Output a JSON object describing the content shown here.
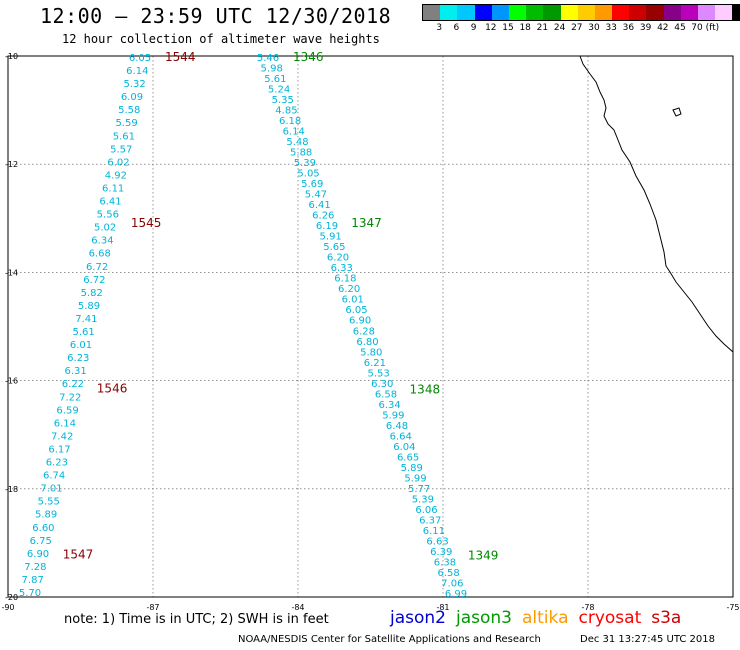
{
  "header": {
    "title": "12:00 — 23:59 UTC 12/30/2018",
    "subtitle": "12 hour collection of altimeter wave heights"
  },
  "legend": {
    "colors": [
      "#808080",
      "#00eeee",
      "#00c8ff",
      "#0000ff",
      "#0096ff",
      "#00ff00",
      "#00bb00",
      "#009900",
      "#ffff00",
      "#ffcc00",
      "#ff9900",
      "#ff0000",
      "#cc0000",
      "#990000",
      "#880088",
      "#bb00bb",
      "#dd88ff",
      "#ffccff",
      "#000000"
    ],
    "labels": [
      "3",
      "6",
      "9",
      "12",
      "15",
      "18",
      "21",
      "24",
      "27",
      "30",
      "33",
      "36",
      "39",
      "42",
      "45",
      "70 (ft)"
    ]
  },
  "map": {
    "lon_range": [
      -90,
      -75
    ],
    "lat_range": [
      -20,
      -10
    ],
    "x_ticks": [
      "-90",
      "-87",
      "-84",
      "-81",
      "-78",
      "-75"
    ],
    "y_ticks": [
      "-10",
      "-12",
      "-14",
      "-16",
      "-18",
      "-20"
    ],
    "value_color": "#00b4d8",
    "track_a": {
      "values": [
        "6.05",
        "6.14",
        "5.32",
        "6.09",
        "5.58",
        "5.59",
        "5.61",
        "5.57",
        "6.02",
        "4.92",
        "6.11",
        "6.41",
        "5.56",
        "5.02",
        "6.34",
        "6.68",
        "6.72",
        "6.72",
        "5.82",
        "5.89",
        "7.41",
        "5.61",
        "6.01",
        "6.23",
        "6.31",
        "6.22",
        "7.22",
        "6.59",
        "6.14",
        "7.42",
        "6.17",
        "6.23",
        "6.74",
        "7.01",
        "5.55",
        "5.89",
        "6.60",
        "6.75",
        "6.90",
        "7.28",
        "7.87",
        "5.70"
      ],
      "times": [
        {
          "label": "1544",
          "color": "#880000"
        },
        {
          "label": "1545",
          "color": "#880000"
        },
        {
          "label": "1546",
          "color": "#880000"
        },
        {
          "label": "1547",
          "color": "#880000"
        }
      ]
    },
    "track_b": {
      "values": [
        "5.46",
        "5.98",
        "5.61",
        "5.24",
        "5.35",
        "4.85",
        "6.18",
        "6.14",
        "5.48",
        "5.88",
        "5.39",
        "5.05",
        "5.69",
        "5.47",
        "6.41",
        "6.26",
        "6.19",
        "5.91",
        "5.65",
        "6.20",
        "6.33",
        "6.18",
        "6.20",
        "6.01",
        "6.05",
        "6.90",
        "6.28",
        "6.80",
        "5.80",
        "6.21",
        "5.53",
        "6.30",
        "6.58",
        "6.34",
        "5.99",
        "6.48",
        "6.64",
        "6.04",
        "6.65",
        "5.89",
        "5.99",
        "5.77",
        "5.39",
        "6.06",
        "6.37",
        "6.11",
        "6.63",
        "6.39",
        "6.38",
        "6.58",
        "7.06",
        "6.99"
      ],
      "times": [
        {
          "label": "1346",
          "color": "#008800"
        },
        {
          "label": "1347",
          "color": "#008800"
        },
        {
          "label": "1348",
          "color": "#008800"
        },
        {
          "label": "1349",
          "color": "#008800"
        }
      ]
    }
  },
  "footer": {
    "note": "note:  1) Time is in UTC; 2) SWH is in feet",
    "missions": [
      {
        "name": "jason2",
        "color": "#0000cc"
      },
      {
        "name": "jason3",
        "color": "#009900"
      },
      {
        "name": "altika",
        "color": "#ff9900"
      },
      {
        "name": "cryosat",
        "color": "#ff0000"
      },
      {
        "name": "s3a",
        "color": "#cc0000"
      }
    ],
    "credit": "NOAA/NESDIS Center for Satellite Applications and Research",
    "timestamp": "Dec 31 13:27:45 UTC 2018"
  }
}
